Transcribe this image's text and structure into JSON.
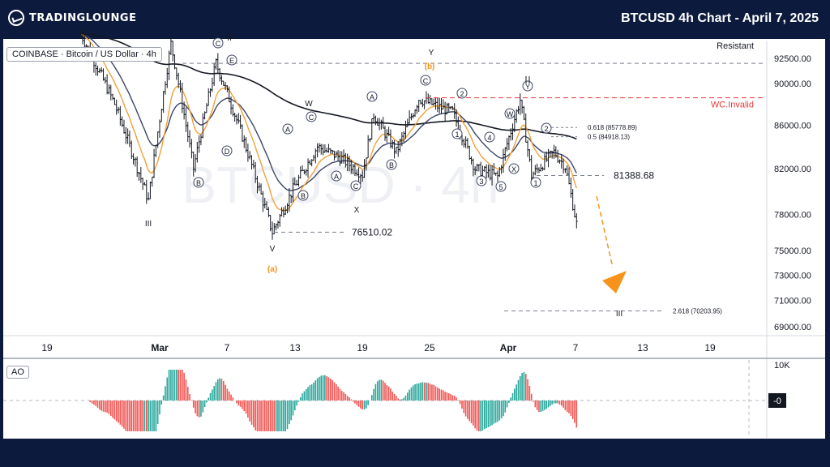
{
  "header": {
    "brand": "TRADINGLOUNGE",
    "title": "BTCUSD 4h Chart - April 7, 2025"
  },
  "legend": {
    "symbol": "COINBASE · Bitcoin / US Dollar · 4h",
    "indicator": "AO"
  },
  "watermark": "BTCUSD · 4h",
  "colors": {
    "background": "#0c1a3d",
    "bull_candle": "#131722",
    "ema_fast": "#f0a13a",
    "ema_slow": "#3d4666",
    "ema_long": "#131722",
    "invalid_line": "#e53935",
    "projection": "#f7931a",
    "ao_up": "#26a69a",
    "ao_down": "#ef5350"
  },
  "chart_data": {
    "type": "candlestick",
    "y_scale": "log",
    "ylim": [
      67500,
      95000
    ],
    "x_tick_labels": [
      "19",
      "Mar",
      "7",
      "13",
      "19",
      "25",
      "Apr",
      "7",
      "13",
      "19"
    ],
    "y_tick_labels": [
      "92500.00",
      "90000.00",
      "86000.00",
      "82000.00",
      "78000.00",
      "75000.00",
      "73000.00",
      "71000.00",
      "69000.00"
    ],
    "y_tick_values": [
      92500,
      90000,
      86000,
      82000,
      78000,
      75000,
      73000,
      71000,
      69000
    ],
    "price_anchors": [
      {
        "date": "Feb 22",
        "price": 95000
      },
      {
        "date": "Feb 25",
        "price": 88000
      },
      {
        "date": "Feb 28",
        "price": 79200
      },
      {
        "date": "Mar 2",
        "price": 94000
      },
      {
        "date": "Mar 4",
        "price": 82000
      },
      {
        "date": "Mar 6",
        "price": 92000
      },
      {
        "date": "Mar 8",
        "price": 86000
      },
      {
        "date": "Mar 11",
        "price": 76510
      },
      {
        "date": "Mar 13",
        "price": 80500
      },
      {
        "date": "Mar 15",
        "price": 84000
      },
      {
        "date": "Mar 17",
        "price": 83000
      },
      {
        "date": "Mar 19",
        "price": 81500
      },
      {
        "date": "Mar 20",
        "price": 87000
      },
      {
        "date": "Mar 22",
        "price": 83500
      },
      {
        "date": "Mar 24",
        "price": 88500
      },
      {
        "date": "Mar 27",
        "price": 87200
      },
      {
        "date": "Mar 29",
        "price": 82000
      },
      {
        "date": "Mar 31",
        "price": 81300
      },
      {
        "date": "Apr 2",
        "price": 88400
      },
      {
        "date": "Apr 3",
        "price": 81400
      },
      {
        "date": "Apr 5",
        "price": 83500
      },
      {
        "date": "Apr 6",
        "price": 82200
      },
      {
        "date": "Apr 7",
        "price": 77200
      }
    ],
    "levels": [
      {
        "label": "Resistant",
        "price": 92000
      },
      {
        "label": "WC.Invalid",
        "price": 88600
      },
      {
        "label": "0.618 (85778.89)",
        "price": 85778.89
      },
      {
        "label": "0.5 (84918.13)",
        "price": 84918.13
      },
      {
        "label": "81388.68",
        "price": 81388.68
      },
      {
        "label": "76510.02",
        "price": 76510.02
      },
      {
        "label": "2.618 (70203.95)",
        "price": 70203.95
      }
    ],
    "wave_labels": [
      "III",
      "C",
      "II",
      "E",
      "B",
      "D",
      "V",
      "(a)",
      "A",
      "W",
      "C",
      "B",
      "A",
      "C",
      "X",
      "A",
      "B",
      "Y",
      "(b)",
      "C",
      "2",
      "1",
      "4",
      "3",
      "5",
      "X",
      "W",
      "Y",
      "2",
      "1",
      "III"
    ],
    "ao_labels": [
      "10K",
      "-0"
    ]
  }
}
